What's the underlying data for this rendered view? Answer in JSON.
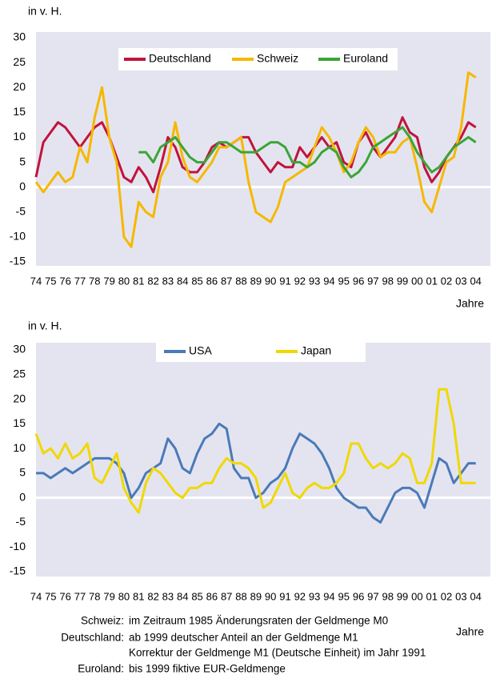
{
  "chart_data": [
    {
      "type": "line",
      "ylabel": "in v. H.",
      "xlabel": "Jahre",
      "x": [
        1974,
        1974.5,
        1975,
        1975.5,
        1976,
        1976.5,
        1977,
        1977.5,
        1978,
        1978.5,
        1979,
        1979.5,
        1980,
        1980.5,
        1981,
        1981.5,
        1982,
        1982.5,
        1983,
        1983.5,
        1984,
        1984.5,
        1985,
        1985.5,
        1986,
        1986.5,
        1987,
        1987.5,
        1988,
        1988.5,
        1989,
        1989.5,
        1990,
        1990.5,
        1991,
        1991.5,
        1992,
        1992.5,
        1993,
        1993.5,
        1994,
        1994.5,
        1995,
        1995.5,
        1996,
        1996.5,
        1997,
        1997.5,
        1998,
        1998.5,
        1999,
        1999.5,
        2000,
        2000.5,
        2001,
        2001.5,
        2002,
        2002.5,
        2003,
        2003.5,
        2004
      ],
      "series": [
        {
          "name": "Deutschland",
          "color": "#c0143c",
          "values": [
            2,
            9,
            11,
            13,
            12,
            10,
            8,
            10,
            12,
            13,
            10,
            6,
            2,
            1,
            4,
            2,
            -1,
            4,
            10,
            8,
            4,
            3,
            3,
            5,
            8,
            9,
            8,
            9,
            10,
            10,
            7,
            5,
            3,
            5,
            4,
            4,
            8,
            6,
            8,
            10,
            8,
            9,
            5,
            4,
            9,
            11,
            8,
            6,
            8,
            10,
            14,
            11,
            10,
            4,
            1,
            3,
            6,
            8,
            10,
            13,
            12
          ]
        },
        {
          "name": "Schweiz",
          "color": "#f5b800",
          "values": [
            1,
            -1,
            1,
            3,
            1,
            2,
            8,
            5,
            14,
            20,
            10,
            5,
            -10,
            -12,
            -3,
            -5,
            -6,
            2,
            5,
            13,
            6,
            2,
            1,
            3,
            5,
            8,
            8,
            9,
            10,
            1,
            -5,
            -6,
            -7,
            -4,
            1,
            2,
            3,
            4,
            8,
            12,
            10,
            7,
            3,
            5,
            9,
            12,
            10,
            6,
            7,
            7,
            9,
            10,
            4,
            -3,
            -5,
            0,
            5,
            6,
            12,
            23,
            22
          ]
        },
        {
          "name": "Euroland",
          "color": "#3aa535",
          "values": [
            null,
            null,
            null,
            null,
            null,
            null,
            null,
            null,
            null,
            null,
            null,
            null,
            null,
            null,
            7,
            7,
            5,
            8,
            9,
            10,
            8,
            6,
            5,
            5,
            7,
            9,
            9,
            8,
            7,
            7,
            7,
            8,
            9,
            9,
            8,
            5,
            5,
            4,
            5,
            7,
            8,
            7,
            4,
            2,
            3,
            5,
            8,
            9,
            10,
            11,
            12,
            10,
            7,
            5,
            3,
            4,
            6,
            8,
            9,
            10,
            9
          ]
        }
      ],
      "xlim": [
        1974,
        2005
      ],
      "xticks": [
        {
          "value": 1974,
          "label": "74"
        },
        {
          "value": 1975,
          "label": "75"
        },
        {
          "value": 1976,
          "label": "76"
        },
        {
          "value": 1977,
          "label": "77"
        },
        {
          "value": 1978,
          "label": "78"
        },
        {
          "value": 1979,
          "label": "79"
        },
        {
          "value": 1980,
          "label": "80"
        },
        {
          "value": 1981,
          "label": "81"
        },
        {
          "value": 1982,
          "label": "82"
        },
        {
          "value": 1983,
          "label": "83"
        },
        {
          "value": 1984,
          "label": "84"
        },
        {
          "value": 1985,
          "label": "85"
        },
        {
          "value": 1986,
          "label": "86"
        },
        {
          "value": 1987,
          "label": "87"
        },
        {
          "value": 1988,
          "label": "88"
        },
        {
          "value": 1989,
          "label": "89"
        },
        {
          "value": 1990,
          "label": "90"
        },
        {
          "value": 1991,
          "label": "91"
        },
        {
          "value": 1992,
          "label": "92"
        },
        {
          "value": 1993,
          "label": "93"
        },
        {
          "value": 1994,
          "label": "94"
        },
        {
          "value": 1995,
          "label": "95"
        },
        {
          "value": 1996,
          "label": "96"
        },
        {
          "value": 1997,
          "label": "97"
        },
        {
          "value": 1998,
          "label": "98"
        },
        {
          "value": 1999,
          "label": "99"
        },
        {
          "value": 2000,
          "label": "00"
        },
        {
          "value": 2001,
          "label": "01"
        },
        {
          "value": 2002,
          "label": "02"
        },
        {
          "value": 2003,
          "label": "03"
        },
        {
          "value": 2004,
          "label": "04"
        }
      ],
      "ylim": [
        -15,
        30
      ],
      "yticks": [
        30,
        25,
        20,
        15,
        10,
        5,
        0,
        -5,
        -10,
        -15
      ]
    },
    {
      "type": "line",
      "ylabel": "in v. H.",
      "xlabel": "Jahre",
      "x": [
        1974,
        1974.5,
        1975,
        1975.5,
        1976,
        1976.5,
        1977,
        1977.5,
        1978,
        1978.5,
        1979,
        1979.5,
        1980,
        1980.5,
        1981,
        1981.5,
        1982,
        1982.5,
        1983,
        1983.5,
        1984,
        1984.5,
        1985,
        1985.5,
        1986,
        1986.5,
        1987,
        1987.5,
        1988,
        1988.5,
        1989,
        1989.5,
        1990,
        1990.5,
        1991,
        1991.5,
        1992,
        1992.5,
        1993,
        1993.5,
        1994,
        1994.5,
        1995,
        1995.5,
        1996,
        1996.5,
        1997,
        1997.5,
        1998,
        1998.5,
        1999,
        1999.5,
        2000,
        2000.5,
        2001,
        2001.5,
        2002,
        2002.5,
        2003,
        2003.5,
        2004
      ],
      "series": [
        {
          "name": "USA",
          "color": "#4a7ab8",
          "values": [
            5,
            5,
            4,
            5,
            6,
            5,
            6,
            7,
            8,
            8,
            8,
            7,
            5,
            0,
            2,
            5,
            6,
            7,
            12,
            10,
            6,
            5,
            9,
            12,
            13,
            15,
            14,
            6,
            4,
            4,
            0,
            1,
            3,
            4,
            6,
            10,
            13,
            12,
            11,
            9,
            6,
            2,
            0,
            -1,
            -2,
            -2,
            -4,
            -5,
            -2,
            1,
            2,
            2,
            1,
            -2,
            3,
            8,
            7,
            3,
            5,
            7,
            7
          ]
        },
        {
          "name": "Japan",
          "color": "#f0d800",
          "values": [
            13,
            9,
            10,
            8,
            11,
            8,
            9,
            11,
            4,
            3,
            6,
            9,
            2,
            -1,
            -3,
            3,
            6,
            5,
            3,
            1,
            0,
            2,
            2,
            3,
            3,
            6,
            8,
            7,
            7,
            6,
            4,
            -2,
            -1,
            2,
            5,
            1,
            0,
            2,
            3,
            2,
            2,
            3,
            5,
            11,
            11,
            8,
            6,
            7,
            6,
            7,
            9,
            8,
            3,
            3,
            7,
            22,
            22,
            15,
            3,
            3,
            3
          ]
        }
      ],
      "xlim": [
        1974,
        2005
      ],
      "xticks": [
        {
          "value": 1974,
          "label": "74"
        },
        {
          "value": 1975,
          "label": "75"
        },
        {
          "value": 1976,
          "label": "76"
        },
        {
          "value": 1977,
          "label": "77"
        },
        {
          "value": 1978,
          "label": "78"
        },
        {
          "value": 1979,
          "label": "79"
        },
        {
          "value": 1980,
          "label": "80"
        },
        {
          "value": 1981,
          "label": "81"
        },
        {
          "value": 1982,
          "label": "82"
        },
        {
          "value": 1983,
          "label": "83"
        },
        {
          "value": 1984,
          "label": "84"
        },
        {
          "value": 1985,
          "label": "85"
        },
        {
          "value": 1986,
          "label": "86"
        },
        {
          "value": 1987,
          "label": "87"
        },
        {
          "value": 1988,
          "label": "88"
        },
        {
          "value": 1989,
          "label": "89"
        },
        {
          "value": 1990,
          "label": "90"
        },
        {
          "value": 1991,
          "label": "91"
        },
        {
          "value": 1992,
          "label": "92"
        },
        {
          "value": 1993,
          "label": "93"
        },
        {
          "value": 1994,
          "label": "94"
        },
        {
          "value": 1995,
          "label": "95"
        },
        {
          "value": 1996,
          "label": "96"
        },
        {
          "value": 1997,
          "label": "97"
        },
        {
          "value": 1998,
          "label": "98"
        },
        {
          "value": 1999,
          "label": "99"
        },
        {
          "value": 2000,
          "label": "00"
        },
        {
          "value": 2001,
          "label": "01"
        },
        {
          "value": 2002,
          "label": "02"
        },
        {
          "value": 2003,
          "label": "03"
        },
        {
          "value": 2004,
          "label": "04"
        }
      ],
      "ylim": [
        -15,
        30
      ],
      "yticks": [
        30,
        25,
        20,
        15,
        10,
        5,
        0,
        -5,
        -10,
        -15
      ]
    }
  ],
  "footnotes": [
    {
      "label": "Schweiz:",
      "text": "im Zeitraum 1985 Änderungsraten der Geldmenge M0"
    },
    {
      "label": "Deutschland:",
      "text": "ab 1999 deutscher Anteil an der Geldmenge M1"
    },
    {
      "text": "Korrektur der Geldmenge M1 (Deutsche Einheit) im Jahr 1991"
    },
    {
      "label": "Euroland:",
      "text": "bis 1999 fiktive EUR-Geldmenge"
    }
  ]
}
